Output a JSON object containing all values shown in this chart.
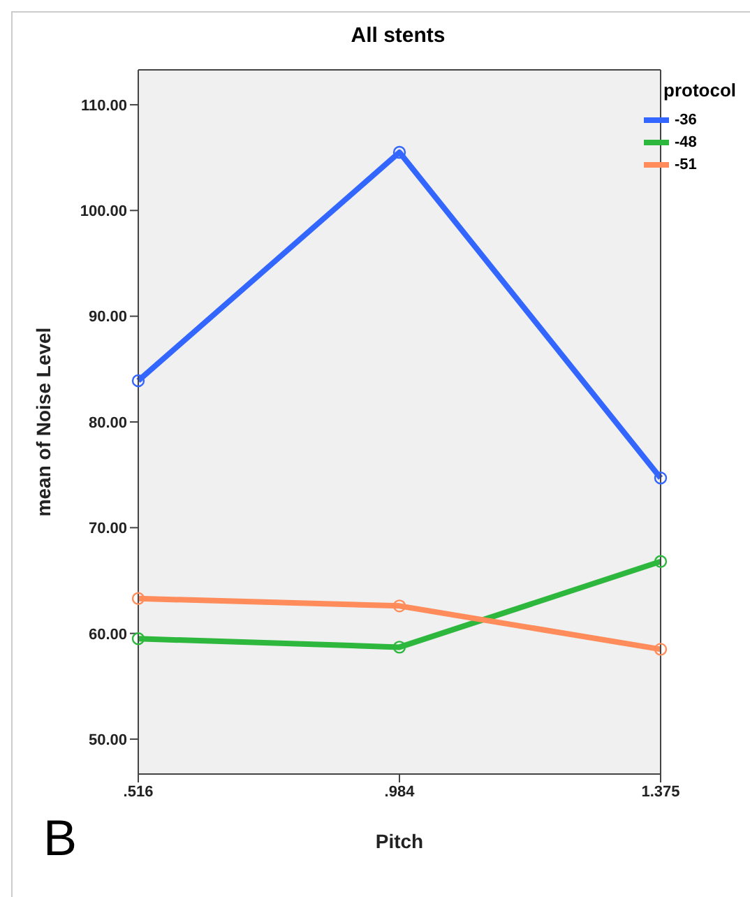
{
  "chart_data": {
    "type": "line",
    "title": "All stents",
    "xlabel": "Pitch",
    "ylabel": "mean of Noise Level",
    "legend_title": "protocol",
    "categories": [
      ".516",
      ".984",
      "1.375"
    ],
    "series": [
      {
        "name": "-36",
        "color": "#3366ff",
        "values": [
          83.9,
          105.5,
          74.7
        ]
      },
      {
        "name": "-48",
        "color": "#2db83d",
        "values": [
          59.5,
          58.7,
          66.8
        ]
      },
      {
        "name": "-51",
        "color": "#ff8c5a",
        "values": [
          63.3,
          62.6,
          58.5
        ]
      }
    ],
    "ylim": [
      46.7,
      113.3
    ],
    "yticks": [
      {
        "value": 50,
        "label": "50.00"
      },
      {
        "value": 60,
        "label": "60.00"
      },
      {
        "value": 70,
        "label": "70.00"
      },
      {
        "value": 80,
        "label": "80.00"
      },
      {
        "value": 90,
        "label": "90.00"
      },
      {
        "value": 100,
        "label": "100.00"
      },
      {
        "value": 110,
        "label": "110.00"
      }
    ],
    "annotations": [
      "B"
    ],
    "marker": "circle",
    "legend": "top right",
    "grid": false
  }
}
